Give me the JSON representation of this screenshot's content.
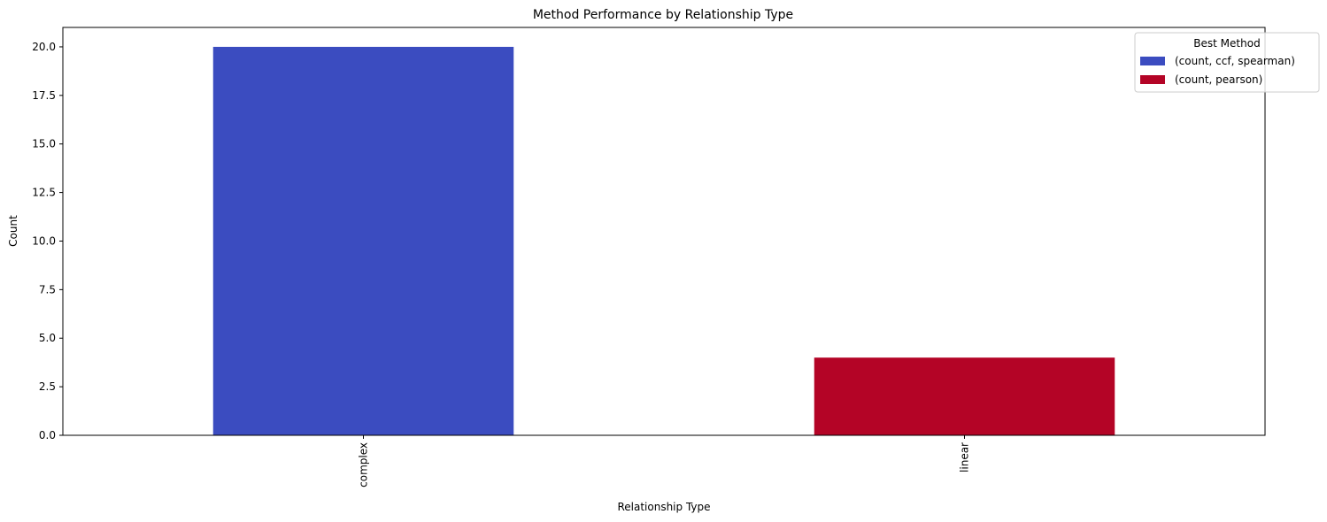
{
  "chart_data": {
    "type": "bar",
    "title": "Method Performance by Relationship Type",
    "xlabel": "Relationship Type",
    "ylabel": "Count",
    "categories": [
      "complex",
      "linear"
    ],
    "series": [
      {
        "name": "(count, ccf, spearman)",
        "values": [
          20,
          0
        ],
        "color": "#3b4cc0"
      },
      {
        "name": "(count, pearson)",
        "values": [
          0,
          4
        ],
        "color": "#b40426"
      }
    ],
    "ylim": [
      0,
      21
    ],
    "yticks": [
      "0.0",
      "2.5",
      "5.0",
      "7.5",
      "10.0",
      "12.5",
      "15.0",
      "17.5",
      "20.0"
    ],
    "ytick_values": [
      0,
      2.5,
      5,
      7.5,
      10,
      12.5,
      15,
      17.5,
      20
    ],
    "grid": false,
    "stacked": true,
    "legend": {
      "title": "Best Method",
      "placement": "top-right"
    }
  }
}
